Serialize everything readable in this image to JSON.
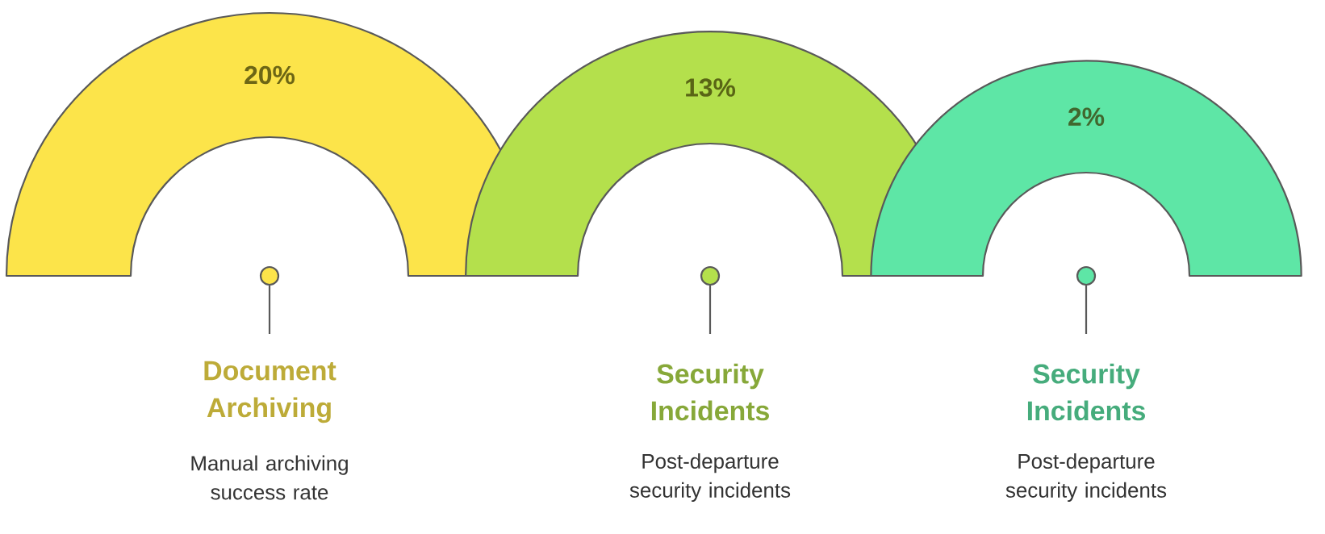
{
  "chart_data": {
    "type": "other",
    "categories": [
      "Document Archiving",
      "Security Incidents",
      "Security Incidents"
    ],
    "values": [
      20,
      13,
      2
    ],
    "value_labels": [
      "20%",
      "13%",
      "2%"
    ],
    "colors": [
      "#fce44a",
      "#b4e04c",
      "#5ee6a6"
    ],
    "annotations": [
      "Manual archiving success rate",
      "Post-departure security incidents",
      "Post-departure security incidents"
    ]
  }
}
